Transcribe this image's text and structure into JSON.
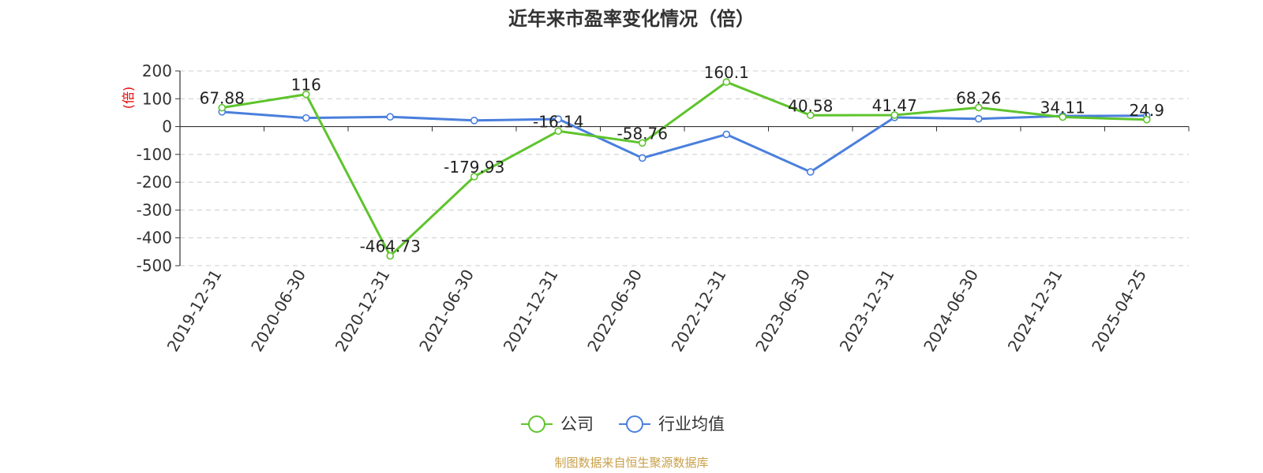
{
  "chart_data": {
    "type": "line",
    "title": "近年来市盈率变化情况（倍）",
    "unit_label": "(倍)",
    "categories": [
      "2019-12-31",
      "2020-06-30",
      "2020-12-31",
      "2021-06-30",
      "2021-12-31",
      "2022-06-30",
      "2022-12-31",
      "2023-06-30",
      "2023-12-31",
      "2024-06-30",
      "2024-12-31",
      "2025-04-25"
    ],
    "series": [
      {
        "name": "公司",
        "color": "#5ec42c",
        "values": [
          67.88,
          116,
          -464.73,
          -179.93,
          -16.14,
          -58.76,
          160.1,
          40.58,
          41.47,
          68.26,
          34.11,
          24.9
        ],
        "labels": [
          "67.88",
          "116",
          "-464.73",
          "-179.93",
          "-16.14",
          "-58.76",
          "160.1",
          "40.58",
          "41.47",
          "68.26",
          "34.11",
          "24.9"
        ]
      },
      {
        "name": "行业均值",
        "color": "#4a7fdc",
        "values": [
          53,
          31,
          35,
          22,
          27,
          -113,
          -28,
          -163,
          33,
          28,
          38,
          39
        ]
      }
    ],
    "yticks": [
      200,
      100,
      0,
      -100,
      -200,
      -300,
      -400,
      -500
    ],
    "ylim": [
      -500,
      200
    ],
    "grid": true,
    "legend_position": "bottom-center"
  },
  "source_text": "制图数据来自恒生聚源数据库"
}
